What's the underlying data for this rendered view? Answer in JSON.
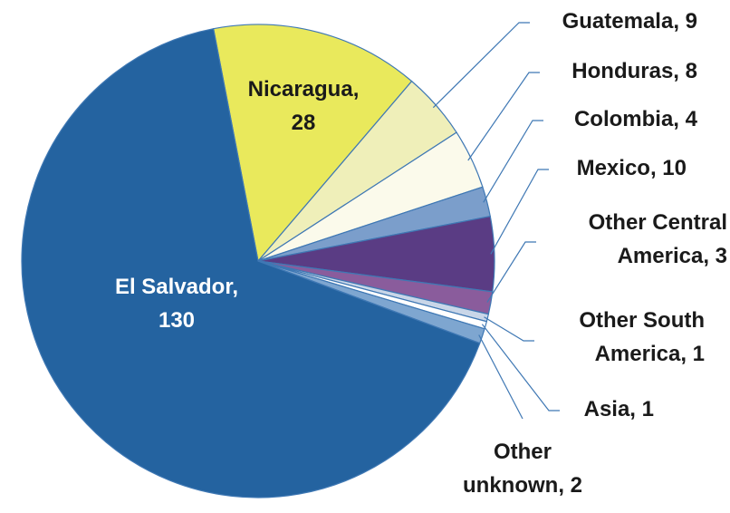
{
  "chart_data": {
    "type": "pie",
    "labels": [
      [
        "Nicaragua,",
        "28"
      ],
      [
        "Guatemala, 9"
      ],
      [
        "Honduras, 8"
      ],
      [
        "Colombia, 4"
      ],
      [
        "Mexico, 10"
      ],
      [
        "Other Central",
        "America, 3"
      ],
      [
        "Other South",
        "America, 1"
      ],
      [
        "Asia, 1"
      ],
      [
        "Other",
        "unknown, 2"
      ],
      [
        "El Salvador,",
        "130"
      ]
    ],
    "values": [
      28,
      9,
      8,
      4,
      10,
      3,
      1,
      1,
      2,
      130
    ],
    "colors": [
      "#e9e95c",
      "#efefb9",
      "#fbfaeb",
      "#7b9ecb",
      "#5a3c84",
      "#8a5c9c",
      "#c9d6e8",
      "#ffffff",
      "#7ea6d0",
      "#2463a0"
    ]
  }
}
